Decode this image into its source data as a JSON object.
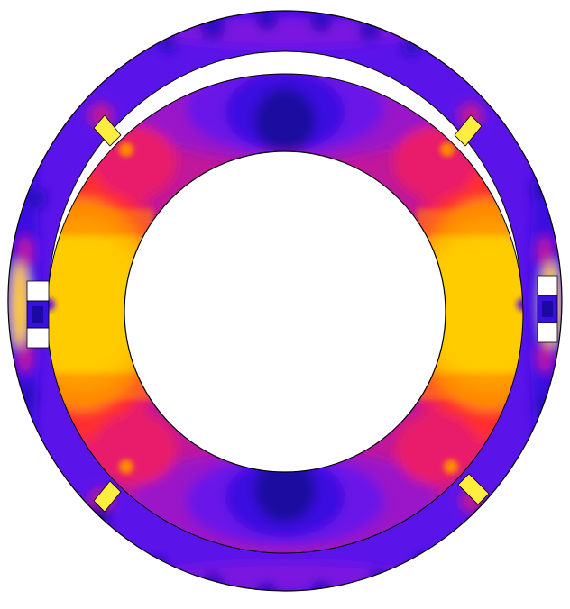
{
  "figure": {
    "kind": "finite-element stress contour plot of two concentric rings joined by spokes",
    "background": "#ffffff",
    "outline_color": "#000000",
    "palette": {
      "deep_blue": "#1a0aa0",
      "blue": "#3a10e0",
      "violet": "#6a12e8",
      "purple": "#9a18c8",
      "magenta": "#c0189a",
      "crimson": "#e81e6a",
      "red": "#ff2e2e",
      "orange": "#ff8a00",
      "amber": "#ffb000",
      "yellow": "#ffcc00",
      "pale_yellow": "#ffee40"
    }
  }
}
